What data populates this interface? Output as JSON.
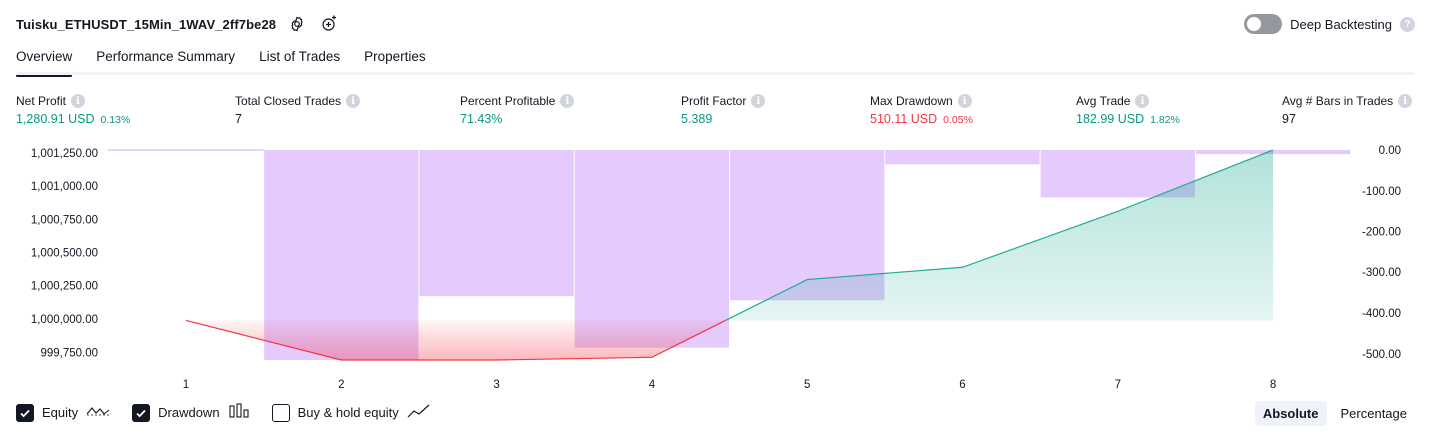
{
  "strategy": {
    "title": "Tuisku_ETHUSDT_15Min_1WAV_2ff7be28"
  },
  "deep_backtesting": {
    "label": "Deep Backtesting",
    "enabled": false
  },
  "tabs": [
    {
      "label": "Overview"
    },
    {
      "label": "Performance Summary"
    },
    {
      "label": "List of Trades"
    },
    {
      "label": "Properties"
    }
  ],
  "metrics": {
    "net_profit": {
      "label": "Net Profit",
      "value": "1,280.91 USD",
      "pct": "0.13%"
    },
    "total_closed_trades": {
      "label": "Total Closed Trades",
      "value": "7"
    },
    "percent_profitable": {
      "label": "Percent Profitable",
      "value": "71.43%"
    },
    "profit_factor": {
      "label": "Profit Factor",
      "value": "5.389"
    },
    "max_drawdown": {
      "label": "Max Drawdown",
      "value": "510.11 USD",
      "pct": "0.05%"
    },
    "avg_trade": {
      "label": "Avg Trade",
      "value": "182.99 USD",
      "pct": "1.82%"
    },
    "avg_bars": {
      "label": "Avg # Bars in Trades",
      "value": "97"
    }
  },
  "chart_data": {
    "type": "line",
    "x": [
      1,
      2,
      3,
      4,
      5,
      6,
      7,
      8
    ],
    "series": [
      {
        "name": "Equity",
        "axis": "left",
        "values": [
          1000000,
          999710,
          999710,
          999730,
          1000300,
          1000390,
          1000800,
          1001250
        ]
      },
      {
        "name": "Drawdown",
        "axis": "right",
        "type": "bar",
        "values": [
          0,
          -510,
          -355,
          -480,
          -365,
          -35,
          -115,
          -10
        ]
      }
    ],
    "left_axis": {
      "ticks": [
        "1,001,250.00",
        "1,001,000.00",
        "1,000,750.00",
        "1,000,500.00",
        "1,000,250.00",
        "1,000,000.00",
        "999,750.00"
      ],
      "ylim": [
        999710,
        1001250
      ]
    },
    "right_axis": {
      "ticks": [
        "0.00",
        "-100.00",
        "-200.00",
        "-300.00",
        "-400.00",
        "-500.00"
      ],
      "ylim": [
        -510,
        0
      ]
    },
    "x_ticks": [
      "1",
      "2",
      "3",
      "4",
      "5",
      "6",
      "7",
      "8"
    ],
    "colors": {
      "drawdown": "#e1c4fd",
      "equity_up": "#22ab94",
      "equity_down": "#f23645"
    }
  },
  "legend": [
    {
      "label": "Equity",
      "checked": true
    },
    {
      "label": "Drawdown",
      "checked": true
    },
    {
      "label": "Buy & hold equity",
      "checked": false
    }
  ],
  "mode": {
    "absolute": "Absolute",
    "percentage": "Percentage",
    "selected": "Absolute"
  }
}
